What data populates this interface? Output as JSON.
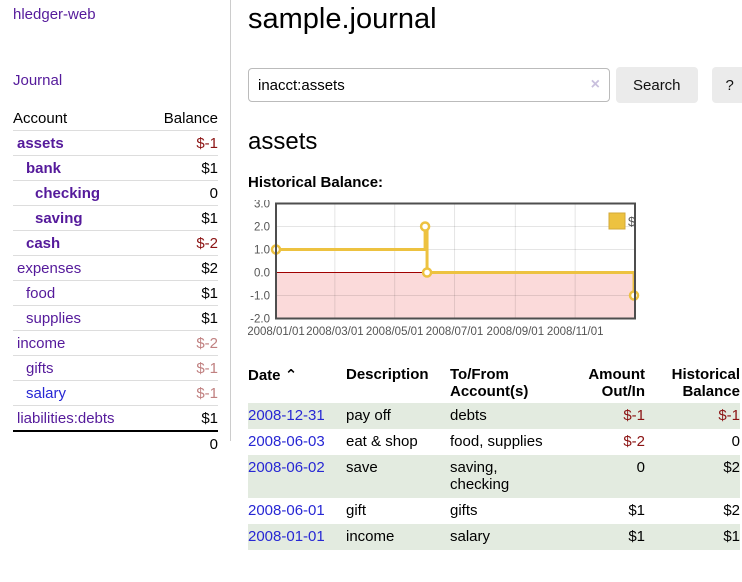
{
  "sidebar": {
    "brand": "hledger-web",
    "journal_link": "Journal",
    "accounts_table": {
      "headers": [
        "Account",
        "Balance"
      ],
      "rows": [
        {
          "name": "assets",
          "indent": 1,
          "bold": true,
          "balance": "$-1",
          "balance_style": "negative-strong"
        },
        {
          "name": "bank",
          "indent": 2,
          "bold": true,
          "balance": "$1",
          "balance_style": "normal"
        },
        {
          "name": "checking",
          "indent": 3,
          "bold": true,
          "balance": "0",
          "balance_style": "normal"
        },
        {
          "name": "saving",
          "indent": 3,
          "bold": true,
          "balance": "$1",
          "balance_style": "normal"
        },
        {
          "name": "cash",
          "indent": 2,
          "bold": true,
          "balance": "$-2",
          "balance_style": "negative-strong"
        },
        {
          "name": "expenses",
          "indent": 1,
          "bold": false,
          "balance": "$2",
          "balance_style": "normal"
        },
        {
          "name": "food",
          "indent": 2,
          "bold": false,
          "balance": "$1",
          "balance_style": "normal"
        },
        {
          "name": "supplies",
          "indent": 2,
          "bold": false,
          "balance": "$1",
          "balance_style": "normal"
        },
        {
          "name": "income",
          "indent": 1,
          "bold": false,
          "balance": "$-2",
          "balance_style": "negative-muted"
        },
        {
          "name": "gifts",
          "indent": 2,
          "bold": false,
          "balance": "$-1",
          "balance_style": "negative-muted"
        },
        {
          "name": "salary",
          "indent": 2,
          "bold": false,
          "balance": "$-1",
          "balance_style": "negative-muted",
          "link_color": "blue"
        },
        {
          "name": "liabilities:debts",
          "indent": 1,
          "bold": false,
          "balance": "$1",
          "balance_style": "normal"
        }
      ],
      "total": "0"
    }
  },
  "header": {
    "title": "sample.journal"
  },
  "search": {
    "value": "inacct:assets",
    "clear_icon": "×",
    "search_button": "Search",
    "help_button": "?"
  },
  "account_page": {
    "heading": "assets",
    "chart_label": "Historical Balance:"
  },
  "chart_data": {
    "type": "line",
    "step": true,
    "title": "Historical Balance:",
    "series": [
      {
        "name": "$",
        "x": [
          "2008-01-01",
          "2008-06-01",
          "2008-06-02",
          "2008-06-03",
          "2008-12-31"
        ],
        "values": [
          1,
          2,
          2,
          0,
          -1
        ]
      }
    ],
    "xrange": [
      "2008-01-01",
      "2009-01-01"
    ],
    "ylim": [
      -2.0,
      3.0
    ],
    "yticks": [
      "3.0",
      "2.0",
      "1.0",
      "0.0",
      "-1.0",
      "-2.0"
    ],
    "xticks": [
      "2008/01/01",
      "2008/03/01",
      "2008/05/01",
      "2008/07/01",
      "2008/09/01",
      "2008/11/01"
    ],
    "legend": {
      "position": "top-right",
      "entries": [
        "$"
      ]
    },
    "negative_region_shaded": true,
    "line_color": "#edc240",
    "negative_fill": "#fbdada",
    "zero_line_color": "#a00000",
    "grid": true
  },
  "register_table": {
    "headers": {
      "date": "Date",
      "sort_indicator": "⌃",
      "description": "Description",
      "accounts": "To/From Account(s)",
      "amount": "Amount Out/In",
      "balance": "Historical Balance"
    },
    "rows": [
      {
        "date": "2008-12-31",
        "description": "pay off",
        "accounts": "debts",
        "amount": "$-1",
        "balance": "$-1"
      },
      {
        "date": "2008-06-03",
        "description": "eat & shop",
        "accounts": "food, supplies",
        "amount": "$-2",
        "balance": "0"
      },
      {
        "date": "2008-06-02",
        "description": "save",
        "accounts": "saving, checking",
        "amount": "0",
        "balance": "$2"
      },
      {
        "date": "2008-06-01",
        "description": "gift",
        "accounts": "gifts",
        "amount": "$1",
        "balance": "$2"
      },
      {
        "date": "2008-01-01",
        "description": "income",
        "accounts": "salary",
        "amount": "$1",
        "balance": "$1"
      }
    ]
  },
  "colors": {
    "link_purple": "#551a9b",
    "link_blue": "#2727d4",
    "negative_strong": "#8b1313",
    "negative_muted": "#c08080",
    "row_stripe_green": "#e3ebe0",
    "series_yellow": "#edc240"
  }
}
